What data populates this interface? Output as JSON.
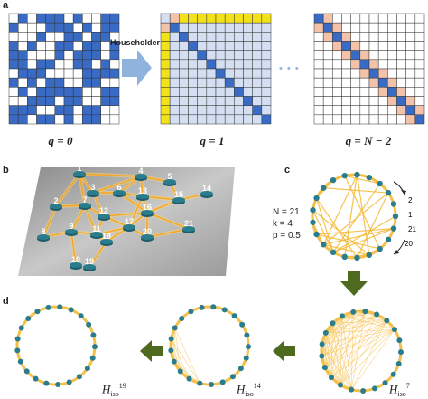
{
  "panel_a": {
    "label": "a",
    "arrow_label": "Householder",
    "ellipsis": "• • •",
    "matrices": [
      {
        "q_label": "q = 0"
      },
      {
        "q_label": "q = 1"
      },
      {
        "q_label": "q = N − 2"
      }
    ]
  },
  "panel_b": {
    "label": "b",
    "node_labels": [
      "1",
      "2",
      "3",
      "4",
      "5",
      "6",
      "7",
      "8",
      "9",
      "10",
      "11",
      "12",
      "13",
      "14",
      "15",
      "16",
      "17",
      "18",
      "19",
      "20",
      "21"
    ]
  },
  "panel_c": {
    "label": "c",
    "params": [
      "N = 21",
      "k = 4",
      "p = 0.5"
    ],
    "node_labels": [
      "2",
      "1",
      "21",
      "20"
    ]
  },
  "panel_d": {
    "label": "d",
    "circles": [
      {
        "h_main": "H",
        "h_sub": "iso",
        "h_sup": "19"
      },
      {
        "h_main": "H",
        "h_sub": "iso",
        "h_sup": "14"
      },
      {
        "h_main": "H",
        "h_sub": "iso",
        "h_sup": "7"
      }
    ]
  },
  "colors": {
    "blue": "#3a6bc4",
    "light_blue": "#d4dff2",
    "yellow": "#f3e21a",
    "salmon": "#f4c2a8",
    "edge": "#f5a623",
    "node": "#2a7d8e",
    "arrow_green": "#4d6a1f",
    "arrow_blue": "#8fb3dd"
  }
}
